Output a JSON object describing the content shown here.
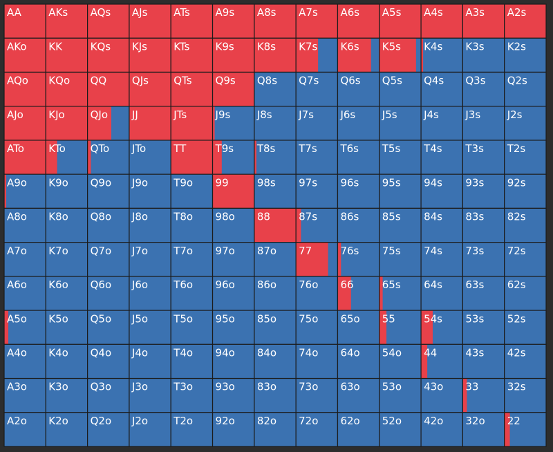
{
  "grid": {
    "colors": {
      "raise": "#e8414a",
      "fold": "#3b72b1"
    },
    "labels": [
      [
        "AA",
        "AKs",
        "AQs",
        "AJs",
        "ATs",
        "A9s",
        "A8s",
        "A7s",
        "A6s",
        "A5s",
        "A4s",
        "A3s",
        "A2s"
      ],
      [
        "AKo",
        "KK",
        "KQs",
        "KJs",
        "KTs",
        "K9s",
        "K8s",
        "K7s",
        "K6s",
        "K5s",
        "K4s",
        "K3s",
        "K2s"
      ],
      [
        "AQo",
        "KQo",
        "QQ",
        "QJs",
        "QTs",
        "Q9s",
        "Q8s",
        "Q7s",
        "Q6s",
        "Q5s",
        "Q4s",
        "Q3s",
        "Q2s"
      ],
      [
        "AJo",
        "KJo",
        "QJo",
        "JJ",
        "JTs",
        "J9s",
        "J8s",
        "J7s",
        "J6s",
        "J5s",
        "J4s",
        "J3s",
        "J2s"
      ],
      [
        "ATo",
        "KTo",
        "QTo",
        "JTo",
        "TT",
        "T9s",
        "T8s",
        "T7s",
        "T6s",
        "T5s",
        "T4s",
        "T3s",
        "T2s"
      ],
      [
        "A9o",
        "K9o",
        "Q9o",
        "J9o",
        "T9o",
        "99",
        "98s",
        "97s",
        "96s",
        "95s",
        "94s",
        "93s",
        "92s"
      ],
      [
        "A8o",
        "K8o",
        "Q8o",
        "J8o",
        "T8o",
        "98o",
        "88",
        "87s",
        "86s",
        "85s",
        "84s",
        "83s",
        "82s"
      ],
      [
        "A7o",
        "K7o",
        "Q7o",
        "J7o",
        "T7o",
        "97o",
        "87o",
        "77",
        "76s",
        "75s",
        "74s",
        "73s",
        "72s"
      ],
      [
        "A6o",
        "K6o",
        "Q6o",
        "J6o",
        "T6o",
        "96o",
        "86o",
        "76o",
        "66",
        "65s",
        "64s",
        "63s",
        "62s"
      ],
      [
        "A5o",
        "K5o",
        "Q5o",
        "J5o",
        "T5o",
        "95o",
        "85o",
        "75o",
        "65o",
        "55",
        "54s",
        "53s",
        "52s"
      ],
      [
        "A4o",
        "K4o",
        "Q4o",
        "J4o",
        "T4o",
        "94o",
        "84o",
        "74o",
        "64o",
        "54o",
        "44",
        "43s",
        "42s"
      ],
      [
        "A3o",
        "K3o",
        "Q3o",
        "J3o",
        "T3o",
        "93o",
        "83o",
        "73o",
        "63o",
        "53o",
        "43o",
        "33",
        "32s"
      ],
      [
        "A2o",
        "K2o",
        "Q2o",
        "J2o",
        "T2o",
        "92o",
        "82o",
        "72o",
        "62o",
        "52o",
        "42o",
        "32o",
        "22"
      ]
    ],
    "raise_percent": [
      [
        100,
        100,
        100,
        100,
        100,
        100,
        100,
        100,
        100,
        100,
        100,
        100,
        100
      ],
      [
        100,
        100,
        100,
        100,
        100,
        100,
        100,
        53,
        80,
        88,
        5,
        0,
        0
      ],
      [
        100,
        100,
        100,
        100,
        100,
        100,
        0,
        0,
        0,
        0,
        0,
        0,
        0
      ],
      [
        100,
        100,
        57,
        100,
        100,
        5,
        0,
        0,
        0,
        0,
        0,
        0,
        0
      ],
      [
        100,
        27,
        8,
        0,
        100,
        22,
        5,
        0,
        0,
        0,
        0,
        0,
        0
      ],
      [
        5,
        0,
        0,
        0,
        0,
        100,
        0,
        0,
        0,
        0,
        0,
        0,
        0
      ],
      [
        0,
        0,
        0,
        0,
        0,
        0,
        100,
        12,
        0,
        0,
        0,
        0,
        0
      ],
      [
        0,
        0,
        0,
        0,
        0,
        0,
        0,
        77,
        8,
        0,
        0,
        0,
        0
      ],
      [
        0,
        0,
        0,
        0,
        0,
        0,
        0,
        0,
        32,
        8,
        0,
        0,
        0
      ],
      [
        10,
        0,
        0,
        0,
        0,
        0,
        0,
        0,
        0,
        17,
        28,
        0,
        0
      ],
      [
        0,
        0,
        0,
        0,
        0,
        0,
        0,
        0,
        0,
        0,
        15,
        0,
        0
      ],
      [
        0,
        0,
        0,
        0,
        0,
        0,
        0,
        0,
        0,
        0,
        0,
        10,
        0
      ],
      [
        0,
        0,
        0,
        0,
        0,
        0,
        0,
        0,
        0,
        0,
        0,
        0,
        13
      ]
    ]
  }
}
